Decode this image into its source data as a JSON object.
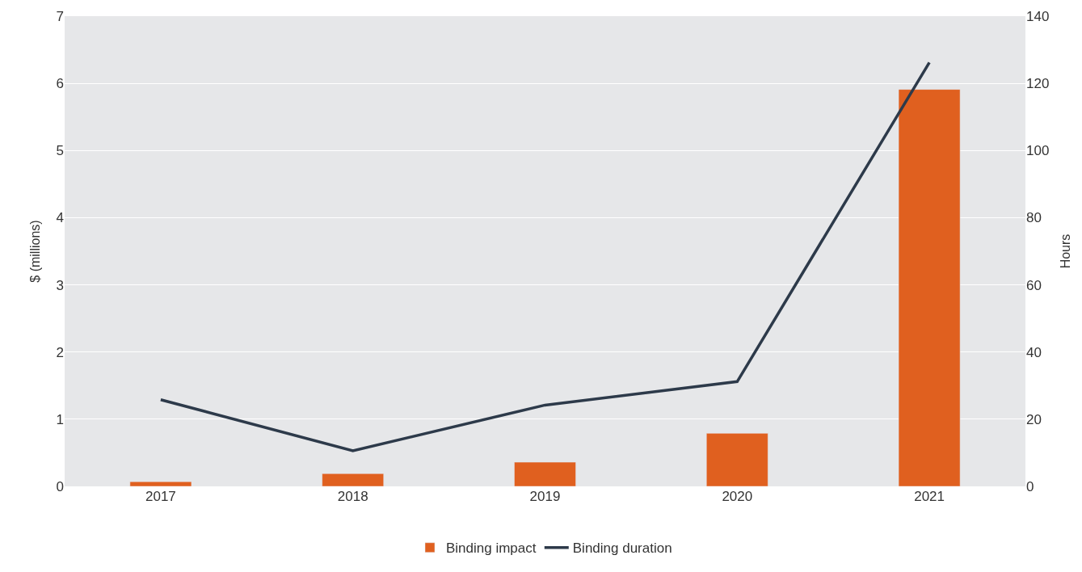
{
  "chart_data": {
    "type": "bar",
    "ylabel": "$ (millions)",
    "y2label": "Hours",
    "categories": [
      "2017",
      "2018",
      "2019",
      "2020",
      "2021"
    ],
    "series": [
      {
        "name": "Binding impact",
        "color": "#e0601f",
        "values": [
          0.07,
          0.19,
          0.36,
          0.79,
          5.91
        ]
      },
      {
        "name": "Binding duration",
        "color": "#2d3a4a",
        "type": "line",
        "axis": "y2",
        "values": [
          25.8,
          10.6,
          24.2,
          31.2,
          126.2
        ]
      }
    ],
    "ylim": [
      0,
      7
    ],
    "yticks": [
      0,
      1,
      2,
      3,
      4,
      5,
      6,
      7
    ],
    "y2lim": [
      0,
      140
    ],
    "y2ticks": [
      0,
      20,
      40,
      60,
      80,
      100,
      120,
      140
    ],
    "grid": "y",
    "legend": "bottom",
    "marker": "none"
  }
}
